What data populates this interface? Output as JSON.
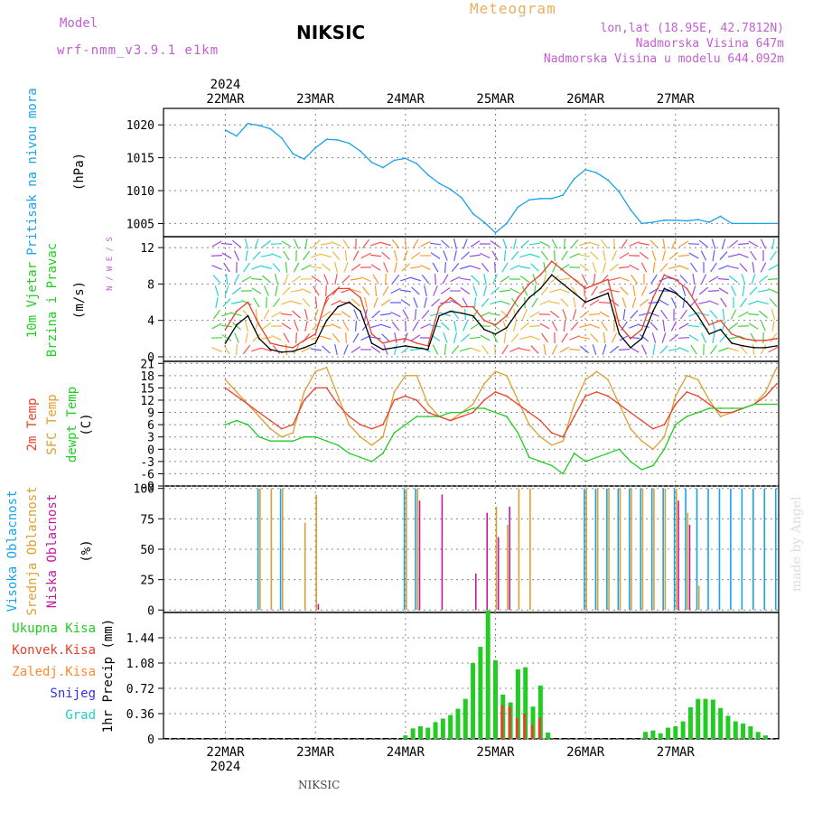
{
  "header": {
    "model_label": "Model",
    "model_name": "wrf-nmm_v3.9.1 e1km",
    "station": "NIKSIC",
    "product": "Meteogram",
    "coords": "lon,lat (18.95E, 42.7812N)",
    "elevation": "Nadmorska Visina 647m",
    "model_elevation": "Nadmorska Visina u modelu 644.092m",
    "watermark": "made by Angel",
    "footer_station": "NIKSIC"
  },
  "colors": {
    "pressure": "#1aa3e8",
    "wind_speed": "#000000",
    "gust": "#e8402a",
    "temp": "#e8402a",
    "sfc_temp": "#dca030",
    "dewpoint": "#22cc22",
    "high_cloud": "#1aa3e8",
    "mid_cloud": "#dca030",
    "low_cloud": "#c01a9e",
    "total_precip": "#22cc22",
    "conv_precip": "#e8402a",
    "frz_precip": "#ff8833",
    "snow": "#3333dd",
    "hail": "#22cccc",
    "grid": "#888888"
  },
  "time_axis": {
    "year_label": "2024",
    "days": [
      "22MAR",
      "23MAR",
      "24MAR",
      "25MAR",
      "26MAR",
      "27MAR"
    ]
  },
  "chart_data": [
    {
      "type": "line",
      "ylabel_main": "Pritisak na nivou mora",
      "ylabel_unit": "(hPa)",
      "y_ticks": [
        1005,
        1010,
        1015,
        1020
      ],
      "ylim": [
        1003,
        1022.5
      ],
      "grid": true,
      "x_hours": [
        0,
        3,
        6,
        9,
        12,
        15,
        18,
        21,
        24,
        27,
        30,
        33,
        36,
        39,
        42,
        45,
        48,
        51,
        54,
        57,
        60,
        63,
        66,
        69,
        72,
        75,
        78,
        81,
        84,
        87,
        90,
        93,
        96,
        99,
        102,
        105,
        108,
        111,
        114,
        117,
        120,
        123,
        126,
        129,
        132,
        135,
        138,
        141,
        144,
        147
      ],
      "values": [
        1019.2,
        1018.3,
        1020.2,
        1019.9,
        1019.4,
        1018.0,
        1015.6,
        1014.8,
        1016.5,
        1017.8,
        1017.7,
        1017.2,
        1016.0,
        1014.3,
        1013.5,
        1014.6,
        1014.9,
        1014.1,
        1012.4,
        1011.1,
        1010.2,
        1008.9,
        1006.5,
        1005.2,
        1003.6,
        1005.0,
        1007.5,
        1008.6,
        1008.8,
        1008.8,
        1009.3,
        1011.8,
        1013.2,
        1012.7,
        1011.6,
        1009.8,
        1007.1,
        1005.0,
        1005.2,
        1005.5,
        1005.5,
        1005.4,
        1005.6,
        1005.2,
        1006.1,
        1005.0,
        1005.0,
        1005.0,
        1005.0,
        1005.0
      ]
    },
    {
      "type": "line",
      "ylabel_main": "10m Vjetar",
      "ylabel_sub": "Brzina i Pravac",
      "ylabel_unit": "(m/s)",
      "compass": "N / W E / S",
      "y_ticks": [
        0,
        4,
        8,
        12
      ],
      "ylim": [
        -0.5,
        13.2
      ],
      "grid": true,
      "x_hours": [
        0,
        3,
        6,
        9,
        12,
        15,
        18,
        21,
        24,
        27,
        30,
        33,
        36,
        39,
        42,
        45,
        48,
        51,
        54,
        57,
        60,
        63,
        66,
        69,
        72,
        75,
        78,
        81,
        84,
        87,
        90,
        93,
        96,
        99,
        102,
        105,
        108,
        111,
        114,
        117,
        120,
        123,
        126,
        129,
        132,
        135,
        138,
        141,
        144,
        147
      ],
      "series": [
        {
          "name": "speed",
          "values": [
            1.5,
            3.5,
            4.5,
            2.0,
            0.8,
            0.5,
            0.6,
            1.0,
            1.5,
            4.0,
            5.5,
            6.0,
            5.0,
            1.5,
            0.8,
            1.0,
            1.2,
            1.0,
            0.8,
            4.5,
            5.0,
            4.8,
            4.5,
            3.0,
            2.5,
            3.2,
            5.0,
            6.5,
            7.5,
            9.0,
            8.0,
            7.0,
            6.0,
            6.5,
            7.0,
            2.5,
            1.0,
            2.0,
            5.0,
            7.5,
            7.0,
            6.0,
            4.5,
            2.5,
            3.0,
            1.5,
            1.2,
            1.0,
            1.0,
            1.2
          ]
        },
        {
          "name": "gust",
          "values": [
            3.0,
            5.0,
            6.0,
            3.5,
            1.5,
            1.2,
            1.0,
            1.8,
            2.5,
            6.5,
            7.5,
            7.5,
            6.5,
            2.5,
            1.5,
            1.8,
            2.0,
            1.5,
            1.2,
            5.5,
            6.5,
            5.5,
            5.5,
            4.0,
            3.5,
            4.5,
            6.5,
            8.0,
            9.0,
            10.5,
            9.5,
            8.5,
            7.5,
            8.0,
            8.5,
            3.5,
            2.0,
            3.0,
            6.5,
            9.0,
            8.5,
            7.5,
            5.5,
            3.5,
            4.0,
            2.5,
            2.0,
            1.8,
            1.8,
            2.0
          ]
        }
      ]
    },
    {
      "type": "line",
      "ylabel_main": "2m Temp",
      "ylabel_sub": "SFC Temp",
      "ylabel_sub2": "dewpt Temp",
      "ylabel_unit": "(C)",
      "y_ticks": [
        -9,
        -6,
        -3,
        0,
        3,
        6,
        9,
        12,
        15,
        18,
        21
      ],
      "ylim": [
        -9,
        21.5
      ],
      "grid": true,
      "x_hours": [
        0,
        3,
        6,
        9,
        12,
        15,
        18,
        21,
        24,
        27,
        30,
        33,
        36,
        39,
        42,
        45,
        48,
        51,
        54,
        57,
        60,
        63,
        66,
        69,
        72,
        75,
        78,
        81,
        84,
        87,
        90,
        93,
        96,
        99,
        102,
        105,
        108,
        111,
        114,
        117,
        120,
        123,
        126,
        129,
        132,
        135,
        138,
        141,
        144,
        147
      ],
      "series": [
        {
          "name": "2m Temp",
          "values": [
            15,
            13,
            11,
            9,
            7,
            5,
            6,
            12,
            15,
            15,
            11,
            8,
            6,
            5,
            6,
            12,
            13,
            12,
            9,
            8,
            7,
            8,
            9,
            12,
            14,
            13,
            11,
            9,
            7,
            4,
            3,
            8,
            13,
            14,
            13,
            11,
            9,
            7,
            5,
            6,
            11,
            14,
            13,
            11,
            9,
            9,
            10,
            11,
            13,
            16
          ]
        },
        {
          "name": "SFC Temp",
          "values": [
            17,
            14,
            11,
            8,
            5,
            3,
            4,
            14,
            19,
            20,
            13,
            6,
            3,
            1,
            3,
            14,
            18,
            18,
            11,
            8,
            7,
            9,
            11,
            16,
            19,
            18,
            12,
            6,
            3,
            1,
            2,
            11,
            17,
            19,
            17,
            11,
            5,
            2,
            0,
            3,
            13,
            18,
            17,
            12,
            8,
            9,
            10,
            11,
            14,
            20
          ]
        },
        {
          "name": "dewpt Temp",
          "values": [
            6,
            7,
            6,
            3,
            2,
            2,
            2,
            3,
            3,
            2,
            1,
            -1,
            -2,
            -3,
            -1,
            4,
            6,
            8,
            8,
            8,
            9,
            9,
            10,
            10,
            9,
            8,
            4,
            -2,
            -3,
            -4,
            -6,
            -1,
            -3,
            -2,
            -1,
            0,
            -3,
            -5,
            -4,
            0,
            6,
            8,
            9,
            10,
            10,
            10,
            10,
            11,
            11,
            11
          ]
        }
      ]
    },
    {
      "type": "bar",
      "ylabel_main": "Visoka Oblacnost",
      "ylabel_sub": "Srednja Oblacnost",
      "ylabel_sub2": "Niska Oblacnost",
      "ylabel_unit": "(%)",
      "y_ticks": [
        0,
        25,
        50,
        75,
        100
      ],
      "ylim": [
        -2,
        102
      ],
      "grid": true,
      "x_hours": [
        0,
        3,
        6,
        9,
        12,
        15,
        18,
        21,
        24,
        27,
        30,
        33,
        36,
        39,
        42,
        45,
        48,
        51,
        54,
        57,
        60,
        63,
        66,
        69,
        72,
        75,
        78,
        81,
        84,
        87,
        90,
        93,
        96,
        99,
        102,
        105,
        108,
        111,
        114,
        117,
        120,
        123,
        126,
        129,
        132,
        135,
        138,
        141,
        144,
        147
      ],
      "series": [
        {
          "name": "Visoka Oblacnost",
          "values": [
            0,
            0,
            0,
            100,
            0,
            100,
            0,
            0,
            0,
            0,
            0,
            0,
            0,
            0,
            0,
            0,
            100,
            100,
            0,
            0,
            0,
            0,
            0,
            0,
            0,
            0,
            0,
            0,
            0,
            0,
            0,
            0,
            100,
            100,
            100,
            100,
            100,
            100,
            100,
            100,
            100,
            100,
            100,
            100,
            100,
            100,
            100,
            100,
            100,
            100
          ]
        },
        {
          "name": "Srednja Oblacnost",
          "values": [
            0,
            0,
            0,
            100,
            100,
            100,
            0,
            72,
            95,
            0,
            0,
            0,
            0,
            0,
            0,
            0,
            100,
            100,
            0,
            0,
            0,
            0,
            0,
            0,
            85,
            70,
            100,
            100,
            0,
            0,
            0,
            0,
            100,
            100,
            100,
            100,
            100,
            100,
            100,
            100,
            100,
            80,
            20,
            0,
            0,
            0,
            0,
            0,
            0,
            0
          ]
        },
        {
          "name": "Niska Oblacnost",
          "values": [
            0,
            0,
            0,
            0,
            0,
            0,
            0,
            0,
            5,
            0,
            0,
            0,
            0,
            0,
            0,
            0,
            0,
            90,
            0,
            95,
            0,
            0,
            30,
            80,
            60,
            85,
            0,
            0,
            0,
            0,
            0,
            0,
            0,
            0,
            0,
            0,
            0,
            0,
            0,
            0,
            90,
            70,
            0,
            0,
            0,
            0,
            0,
            0,
            0,
            0
          ]
        }
      ]
    },
    {
      "type": "bar",
      "ylabel_main": "1hr Precip",
      "ylabel_unit": "(mm)",
      "legend": [
        "Ukupna Kisa",
        "Konvek.Kisa",
        "Zaledj.Kisa",
        "Snijeg",
        "Grad"
      ],
      "y_ticks": [
        0,
        0.36,
        0.72,
        1.08,
        1.44
      ],
      "ylim": [
        0,
        1.8
      ],
      "grid": true,
      "x_hours": [
        48,
        50,
        52,
        54,
        56,
        58,
        60,
        62,
        64,
        66,
        68,
        70,
        72,
        74,
        76,
        78,
        80,
        82,
        84,
        86,
        88,
        90,
        92,
        94,
        96,
        98,
        100,
        102,
        104,
        106,
        108,
        110,
        112,
        114,
        116,
        118,
        120,
        122,
        124,
        126,
        128,
        130,
        132,
        134,
        136,
        138,
        140,
        142,
        144,
        146
      ],
      "series": [
        {
          "name": "Ukupna Kisa",
          "values": [
            0.05,
            0.15,
            0.18,
            0.16,
            0.24,
            0.29,
            0.34,
            0.43,
            0.57,
            1.08,
            1.31,
            1.83,
            1.12,
            0.63,
            0.52,
            0.99,
            1.02,
            0.46,
            0.76,
            0.09,
            0.0,
            0.0,
            0.0,
            0.0,
            0.0,
            0.0,
            0.0,
            0.0,
            0.0,
            0.0,
            0.0,
            0.0,
            0.1,
            0.12,
            0.08,
            0.16,
            0.18,
            0.25,
            0.45,
            0.57,
            0.57,
            0.56,
            0.44,
            0.33,
            0.25,
            0.22,
            0.18,
            0.1,
            0.05,
            0.0
          ]
        },
        {
          "name": "Konvek.Kisa",
          "values": [
            0,
            0,
            0,
            0,
            0,
            0,
            0,
            0,
            0,
            0,
            0,
            0,
            0,
            0.48,
            0.46,
            0.3,
            0.36,
            0.2,
            0.3,
            0,
            0,
            0,
            0,
            0,
            0,
            0,
            0,
            0,
            0,
            0,
            0,
            0,
            0,
            0,
            0,
            0,
            0,
            0,
            0,
            0,
            0,
            0,
            0,
            0,
            0,
            0,
            0,
            0,
            0,
            0
          ]
        }
      ]
    }
  ]
}
